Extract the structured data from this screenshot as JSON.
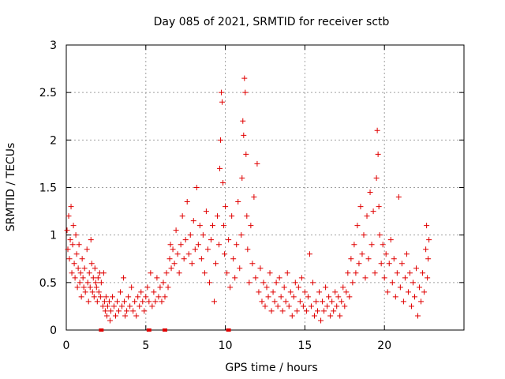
{
  "chart_data": {
    "type": "scatter",
    "title": "Day 085 of 2021, SRMTID for receiver sctb",
    "xlabel": "GPS time / hours",
    "ylabel": "SRMTID / TECUs",
    "xlim": [
      0,
      25
    ],
    "ylim": [
      0,
      3
    ],
    "x_ticks": [
      0,
      5,
      10,
      15,
      20
    ],
    "x_tick_labels": [
      "0",
      "5",
      "10",
      "15",
      "20"
    ],
    "y_ticks": [
      0,
      0.5,
      1,
      1.5,
      2,
      2.5,
      3
    ],
    "y_tick_labels": [
      "0",
      "0.5",
      "1",
      "1.5",
      "2",
      "2.5",
      "3"
    ],
    "grid": true,
    "marker": "plus",
    "color": "#e00000",
    "series": [
      {
        "name": "SRMTID",
        "points": [
          [
            0.05,
            1.05
          ],
          [
            0.1,
            0.85
          ],
          [
            0.15,
            1.2
          ],
          [
            0.2,
            0.75
          ],
          [
            0.25,
            0.95
          ],
          [
            0.3,
            1.3
          ],
          [
            0.35,
            0.6
          ],
          [
            0.4,
            0.9
          ],
          [
            0.45,
            1.1
          ],
          [
            0.5,
            0.7
          ],
          [
            0.55,
            0.55
          ],
          [
            0.6,
            1.0
          ],
          [
            0.65,
            0.8
          ],
          [
            0.7,
            0.45
          ],
          [
            0.75,
            0.65
          ],
          [
            0.8,
            0.9
          ],
          [
            0.85,
            0.5
          ],
          [
            0.9,
            0.6
          ],
          [
            0.95,
            0.35
          ],
          [
            1.0,
            0.75
          ],
          [
            1.05,
            0.55
          ],
          [
            1.1,
            0.45
          ],
          [
            1.15,
            0.65
          ],
          [
            1.2,
            0.4
          ],
          [
            1.3,
            0.85
          ],
          [
            1.35,
            0.5
          ],
          [
            1.4,
            0.3
          ],
          [
            1.45,
            0.6
          ],
          [
            1.5,
            0.45
          ],
          [
            1.55,
            0.95
          ],
          [
            1.6,
            0.7
          ],
          [
            1.65,
            0.4
          ],
          [
            1.7,
            0.55
          ],
          [
            1.75,
            0.35
          ],
          [
            1.8,
            0.65
          ],
          [
            1.85,
            0.5
          ],
          [
            1.9,
            0.45
          ],
          [
            1.95,
            0.3
          ],
          [
            2.0,
            0.55
          ],
          [
            2.05,
            0.4
          ],
          [
            2.1,
            0.6
          ],
          [
            2.15,
            0.35
          ],
          [
            2.2,
            0.5
          ],
          [
            2.3,
            0.25
          ],
          [
            2.35,
            0.6
          ],
          [
            2.4,
            0.3
          ],
          [
            2.45,
            0.2
          ],
          [
            2.5,
            0.35
          ],
          [
            2.55,
            0.15
          ],
          [
            2.6,
            0.25
          ],
          [
            2.7,
            0.3
          ],
          [
            2.75,
            0.1
          ],
          [
            2.8,
            0.2
          ],
          [
            2.9,
            0.35
          ],
          [
            3.0,
            0.25
          ],
          [
            3.1,
            0.15
          ],
          [
            3.2,
            0.3
          ],
          [
            3.3,
            0.2
          ],
          [
            3.4,
            0.4
          ],
          [
            3.5,
            0.25
          ],
          [
            3.6,
            0.55
          ],
          [
            3.65,
            0.3
          ],
          [
            3.7,
            0.15
          ],
          [
            3.8,
            0.2
          ],
          [
            3.9,
            0.35
          ],
          [
            4.0,
            0.25
          ],
          [
            4.1,
            0.45
          ],
          [
            4.2,
            0.2
          ],
          [
            4.3,
            0.3
          ],
          [
            4.4,
            0.15
          ],
          [
            4.5,
            0.35
          ],
          [
            4.6,
            0.25
          ],
          [
            4.7,
            0.4
          ],
          [
            4.8,
            0.3
          ],
          [
            4.9,
            0.2
          ],
          [
            5.0,
            0.35
          ],
          [
            5.1,
            0.45
          ],
          [
            5.2,
            0.3
          ],
          [
            5.3,
            0.6
          ],
          [
            5.4,
            0.25
          ],
          [
            5.5,
            0.4
          ],
          [
            5.6,
            0.3
          ],
          [
            5.7,
            0.55
          ],
          [
            5.8,
            0.35
          ],
          [
            5.9,
            0.45
          ],
          [
            6.0,
            0.3
          ],
          [
            6.1,
            0.5
          ],
          [
            6.2,
            0.35
          ],
          [
            6.3,
            0.6
          ],
          [
            6.4,
            0.45
          ],
          [
            6.5,
            0.75
          ],
          [
            6.55,
            0.9
          ],
          [
            6.6,
            0.65
          ],
          [
            6.7,
            0.85
          ],
          [
            6.8,
            0.7
          ],
          [
            6.9,
            1.05
          ],
          [
            7.0,
            0.8
          ],
          [
            7.1,
            0.6
          ],
          [
            7.2,
            0.9
          ],
          [
            7.3,
            1.2
          ],
          [
            7.4,
            0.75
          ],
          [
            7.5,
            0.95
          ],
          [
            7.6,
            1.35
          ],
          [
            7.7,
            0.8
          ],
          [
            7.8,
            1.0
          ],
          [
            7.9,
            0.7
          ],
          [
            8.0,
            1.15
          ],
          [
            8.1,
            0.85
          ],
          [
            8.2,
            1.5
          ],
          [
            8.3,
            0.9
          ],
          [
            8.4,
            1.1
          ],
          [
            8.5,
            0.75
          ],
          [
            8.6,
            1.0
          ],
          [
            8.7,
            0.6
          ],
          [
            8.8,
            1.25
          ],
          [
            8.9,
            0.85
          ],
          [
            9.0,
            0.5
          ],
          [
            9.1,
            0.95
          ],
          [
            9.2,
            1.1
          ],
          [
            9.3,
            0.3
          ],
          [
            9.4,
            0.7
          ],
          [
            9.5,
            1.2
          ],
          [
            9.6,
            0.9
          ],
          [
            9.65,
            1.7
          ],
          [
            9.7,
            2.0
          ],
          [
            9.75,
            2.5
          ],
          [
            9.8,
            2.4
          ],
          [
            9.85,
            1.55
          ],
          [
            9.9,
            1.1
          ],
          [
            9.95,
            0.8
          ],
          [
            10.0,
            1.3
          ],
          [
            10.1,
            0.6
          ],
          [
            10.2,
            0.95
          ],
          [
            10.3,
            0.45
          ],
          [
            10.4,
            1.2
          ],
          [
            10.5,
            0.75
          ],
          [
            10.6,
            0.55
          ],
          [
            10.7,
            0.9
          ],
          [
            10.8,
            1.35
          ],
          [
            10.9,
            0.65
          ],
          [
            11.0,
            1.0
          ],
          [
            11.05,
            1.6
          ],
          [
            11.1,
            2.2
          ],
          [
            11.15,
            2.05
          ],
          [
            11.2,
            2.65
          ],
          [
            11.25,
            2.5
          ],
          [
            11.3,
            1.85
          ],
          [
            11.35,
            1.2
          ],
          [
            11.4,
            0.85
          ],
          [
            11.5,
            0.5
          ],
          [
            11.6,
            1.1
          ],
          [
            11.7,
            0.7
          ],
          [
            11.8,
            1.4
          ],
          [
            11.9,
            0.55
          ],
          [
            12.0,
            1.75
          ],
          [
            12.1,
            0.4
          ],
          [
            12.2,
            0.65
          ],
          [
            12.3,
            0.3
          ],
          [
            12.4,
            0.5
          ],
          [
            12.5,
            0.25
          ],
          [
            12.6,
            0.45
          ],
          [
            12.7,
            0.35
          ],
          [
            12.8,
            0.6
          ],
          [
            12.9,
            0.2
          ],
          [
            13.0,
            0.4
          ],
          [
            13.1,
            0.3
          ],
          [
            13.2,
            0.5
          ],
          [
            13.3,
            0.25
          ],
          [
            13.4,
            0.55
          ],
          [
            13.5,
            0.35
          ],
          [
            13.6,
            0.2
          ],
          [
            13.7,
            0.45
          ],
          [
            13.8,
            0.3
          ],
          [
            13.9,
            0.6
          ],
          [
            14.0,
            0.25
          ],
          [
            14.1,
            0.4
          ],
          [
            14.2,
            0.15
          ],
          [
            14.3,
            0.35
          ],
          [
            14.4,
            0.5
          ],
          [
            14.5,
            0.2
          ],
          [
            14.6,
            0.45
          ],
          [
            14.7,
            0.3
          ],
          [
            14.8,
            0.55
          ],
          [
            14.9,
            0.25
          ],
          [
            15.0,
            0.4
          ],
          [
            15.1,
            0.2
          ],
          [
            15.2,
            0.35
          ],
          [
            15.3,
            0.8
          ],
          [
            15.4,
            0.25
          ],
          [
            15.5,
            0.5
          ],
          [
            15.6,
            0.15
          ],
          [
            15.7,
            0.3
          ],
          [
            15.8,
            0.2
          ],
          [
            15.9,
            0.4
          ],
          [
            16.0,
            0.1
          ],
          [
            16.1,
            0.3
          ],
          [
            16.2,
            0.2
          ],
          [
            16.3,
            0.45
          ],
          [
            16.4,
            0.25
          ],
          [
            16.5,
            0.35
          ],
          [
            16.6,
            0.15
          ],
          [
            16.7,
            0.3
          ],
          [
            16.8,
            0.2
          ],
          [
            16.9,
            0.4
          ],
          [
            17.0,
            0.25
          ],
          [
            17.1,
            0.35
          ],
          [
            17.2,
            0.15
          ],
          [
            17.3,
            0.3
          ],
          [
            17.4,
            0.45
          ],
          [
            17.5,
            0.25
          ],
          [
            17.6,
            0.4
          ],
          [
            17.7,
            0.6
          ],
          [
            17.8,
            0.35
          ],
          [
            17.9,
            0.75
          ],
          [
            18.0,
            0.5
          ],
          [
            18.1,
            0.9
          ],
          [
            18.2,
            0.6
          ],
          [
            18.3,
            1.1
          ],
          [
            18.4,
            0.7
          ],
          [
            18.5,
            1.3
          ],
          [
            18.6,
            0.8
          ],
          [
            18.7,
            1.0
          ],
          [
            18.8,
            0.55
          ],
          [
            18.9,
            1.2
          ],
          [
            19.0,
            0.75
          ],
          [
            19.1,
            1.45
          ],
          [
            19.2,
            0.9
          ],
          [
            19.3,
            1.25
          ],
          [
            19.4,
            0.6
          ],
          [
            19.5,
            1.6
          ],
          [
            19.55,
            2.1
          ],
          [
            19.6,
            1.85
          ],
          [
            19.65,
            1.3
          ],
          [
            19.7,
            1.0
          ],
          [
            19.8,
            0.7
          ],
          [
            19.9,
            0.9
          ],
          [
            20.0,
            0.55
          ],
          [
            20.1,
            0.8
          ],
          [
            20.2,
            0.4
          ],
          [
            20.3,
            0.7
          ],
          [
            20.4,
            0.95
          ],
          [
            20.5,
            0.5
          ],
          [
            20.6,
            0.75
          ],
          [
            20.7,
            0.35
          ],
          [
            20.8,
            0.6
          ],
          [
            20.9,
            1.4
          ],
          [
            21.0,
            0.45
          ],
          [
            21.1,
            0.7
          ],
          [
            21.2,
            0.3
          ],
          [
            21.3,
            0.55
          ],
          [
            21.4,
            0.8
          ],
          [
            21.5,
            0.4
          ],
          [
            21.6,
            0.6
          ],
          [
            21.7,
            0.25
          ],
          [
            21.8,
            0.5
          ],
          [
            21.9,
            0.35
          ],
          [
            22.0,
            0.65
          ],
          [
            22.1,
            0.15
          ],
          [
            22.2,
            0.45
          ],
          [
            22.3,
            0.3
          ],
          [
            22.4,
            0.6
          ],
          [
            22.5,
            0.4
          ],
          [
            22.6,
            0.85
          ],
          [
            22.65,
            1.1
          ],
          [
            22.7,
            0.55
          ],
          [
            22.75,
            0.75
          ],
          [
            22.8,
            0.95
          ]
        ]
      }
    ],
    "baseline_markers": [
      2.2,
      5.2,
      6.2,
      10.2
    ]
  }
}
